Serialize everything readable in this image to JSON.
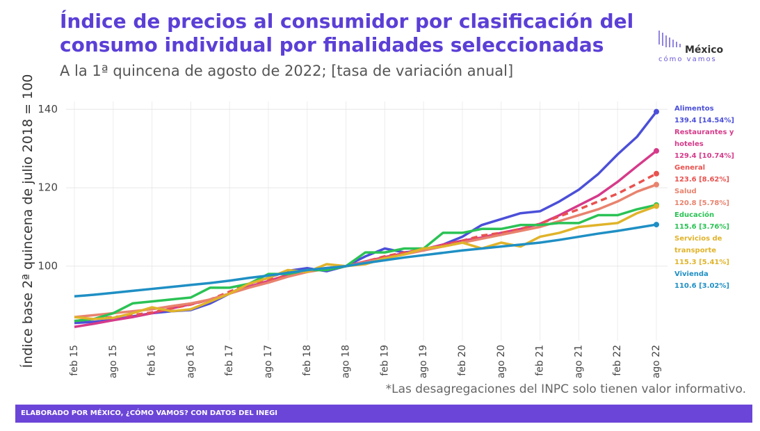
{
  "chart_data": {
    "type": "line",
    "title": "Índice de precios al consumidor por clasificación del consumo individual por finalidades seleccionadas",
    "subtitle": "A la 1ª quincena de agosto de 2022; [tasa de variación anual]",
    "y_label": "Índice base 2ª quincena de julio 2018 = 100",
    "note": "*Las desagregaciones del INPC solo tienen valor informativo.",
    "source": "ELABORADO POR MÉXICO, ¿CÓMO VAMOS? CON DATOS DEL INEGI",
    "logo": [
      "México",
      "cómo vamos"
    ],
    "grid": true,
    "ylim": [
      81,
      142
    ],
    "yticks": [
      100,
      120,
      140
    ],
    "categories": [
      "feb 15",
      null,
      "ago 15",
      null,
      "feb 16",
      null,
      "ago 16",
      null,
      "feb 17",
      null,
      "ago 17",
      null,
      "feb 18",
      null,
      "ago 18",
      null,
      "feb 19",
      null,
      "ago 19",
      null,
      "feb 20",
      null,
      "ago 20",
      null,
      "feb 21",
      null,
      "ago 21",
      null,
      "feb 22",
      null,
      "ago 22"
    ],
    "series": [
      {
        "name": "Alimentos",
        "color": "#4b4fd8",
        "values": [
          85.5,
          85.8,
          86.3,
          87.2,
          88.0,
          88.5,
          88.8,
          90.5,
          93.0,
          95.5,
          97.0,
          98.8,
          99.5,
          98.7,
          100.0,
          102.5,
          104.5,
          103.5,
          104.0,
          105.5,
          107.5,
          110.5,
          112.0,
          113.5,
          114.0,
          116.5,
          119.5,
          123.5,
          128.5,
          133.0,
          139.4
        ],
        "value_labels": [
          null,
          null,
          null,
          null,
          null,
          null,
          null,
          null,
          null,
          null,
          null,
          null,
          null,
          null,
          null,
          null,
          null,
          null,
          null,
          null,
          null,
          null,
          null,
          null,
          null,
          null,
          null,
          null,
          null,
          null,
          "139.4 [14.54%]"
        ]
      },
      {
        "name": "Restaurantes y hoteles",
        "color": "#d63a8a",
        "values": [
          84.5,
          85.3,
          86.2,
          87.0,
          88.0,
          89.2,
          90.3,
          91.5,
          93.0,
          94.8,
          96.2,
          97.8,
          99.0,
          99.5,
          100.0,
          101.2,
          102.3,
          103.3,
          104.3,
          105.5,
          106.5,
          107.3,
          108.5,
          109.5,
          110.8,
          113.0,
          115.5,
          118.0,
          121.5,
          125.5,
          129.4
        ],
        "value_labels": [
          null,
          null,
          null,
          null,
          null,
          null,
          null,
          null,
          null,
          null,
          null,
          null,
          null,
          null,
          null,
          null,
          null,
          null,
          null,
          null,
          null,
          null,
          null,
          null,
          null,
          null,
          null,
          null,
          null,
          null,
          "129.4 [10.74%]"
        ]
      },
      {
        "name": "General",
        "color": "#e8524f",
        "dashed": true,
        "values": [
          86.0,
          86.5,
          87.0,
          87.5,
          88.2,
          89.2,
          90.2,
          91.5,
          93.5,
          95.5,
          96.5,
          97.5,
          98.8,
          99.5,
          100.0,
          101.2,
          102.5,
          103.5,
          104.3,
          105.3,
          106.5,
          107.8,
          108.5,
          109.5,
          110.8,
          112.7,
          114.5,
          116.5,
          118.5,
          121.0,
          123.6
        ],
        "value_labels": [
          null,
          null,
          null,
          null,
          null,
          null,
          null,
          null,
          null,
          null,
          null,
          null,
          null,
          null,
          null,
          null,
          null,
          null,
          null,
          null,
          null,
          null,
          null,
          null,
          null,
          null,
          null,
          null,
          null,
          null,
          "123.6 [8.62%]"
        ]
      },
      {
        "name": "Salud",
        "color": "#e8836e",
        "values": [
          87.0,
          87.5,
          88.0,
          88.5,
          89.0,
          89.8,
          90.5,
          91.5,
          93.0,
          94.5,
          95.8,
          97.3,
          98.5,
          99.3,
          100.0,
          101.0,
          102.0,
          103.0,
          104.0,
          105.0,
          106.0,
          107.0,
          108.0,
          109.0,
          110.0,
          111.5,
          113.0,
          114.5,
          116.5,
          119.0,
          120.8
        ],
        "value_labels": [
          null,
          null,
          null,
          null,
          null,
          null,
          null,
          null,
          null,
          null,
          null,
          null,
          null,
          null,
          null,
          null,
          null,
          null,
          null,
          null,
          null,
          null,
          null,
          null,
          null,
          null,
          null,
          null,
          null,
          null,
          "120.8 [5.78%]"
        ]
      },
      {
        "name": "Educación",
        "color": "#2bc255",
        "values": [
          86.0,
          86.5,
          88.0,
          90.5,
          91.0,
          91.5,
          92.0,
          94.5,
          94.5,
          95.5,
          98.0,
          98.0,
          99.0,
          99.0,
          100.0,
          103.5,
          103.5,
          104.5,
          104.5,
          108.5,
          108.5,
          109.5,
          109.5,
          110.5,
          110.5,
          111.0,
          111.0,
          113.0,
          113.0,
          114.5,
          115.6
        ],
        "value_labels": [
          null,
          null,
          null,
          null,
          null,
          null,
          null,
          null,
          null,
          null,
          null,
          null,
          null,
          null,
          null,
          null,
          null,
          null,
          null,
          null,
          null,
          null,
          null,
          null,
          null,
          null,
          null,
          null,
          null,
          null,
          "115.6 [3.76%]"
        ]
      },
      {
        "name": "Servicios de transporte",
        "color": "#e0b32a",
        "values": [
          87.0,
          86.5,
          86.8,
          88.0,
          89.5,
          88.5,
          89.0,
          91.0,
          93.0,
          95.5,
          97.0,
          99.0,
          98.5,
          100.5,
          100.0,
          100.5,
          102.0,
          103.0,
          104.5,
          105.0,
          106.0,
          104.5,
          106.0,
          105.0,
          107.5,
          108.5,
          110.0,
          110.5,
          111.0,
          113.5,
          115.3
        ],
        "value_labels": [
          null,
          null,
          null,
          null,
          null,
          null,
          null,
          null,
          null,
          null,
          null,
          null,
          null,
          null,
          null,
          null,
          null,
          null,
          null,
          null,
          null,
          null,
          null,
          null,
          null,
          null,
          null,
          null,
          null,
          null,
          "115.3 [5.41%]"
        ]
      },
      {
        "name": "Vivienda",
        "color": "#1f8fc4",
        "values": [
          92.3,
          92.7,
          93.2,
          93.7,
          94.2,
          94.7,
          95.2,
          95.7,
          96.3,
          97.0,
          97.6,
          98.3,
          99.0,
          99.5,
          100.0,
          100.8,
          101.5,
          102.2,
          102.8,
          103.4,
          104.0,
          104.5,
          105.0,
          105.5,
          106.0,
          106.7,
          107.5,
          108.3,
          109.0,
          109.8,
          110.6
        ],
        "value_labels": [
          null,
          null,
          null,
          null,
          null,
          null,
          null,
          null,
          null,
          null,
          null,
          null,
          null,
          null,
          null,
          null,
          null,
          null,
          null,
          null,
          null,
          null,
          null,
          null,
          null,
          null,
          null,
          null,
          null,
          null,
          "110.6 [3.02%]"
        ]
      }
    ]
  }
}
